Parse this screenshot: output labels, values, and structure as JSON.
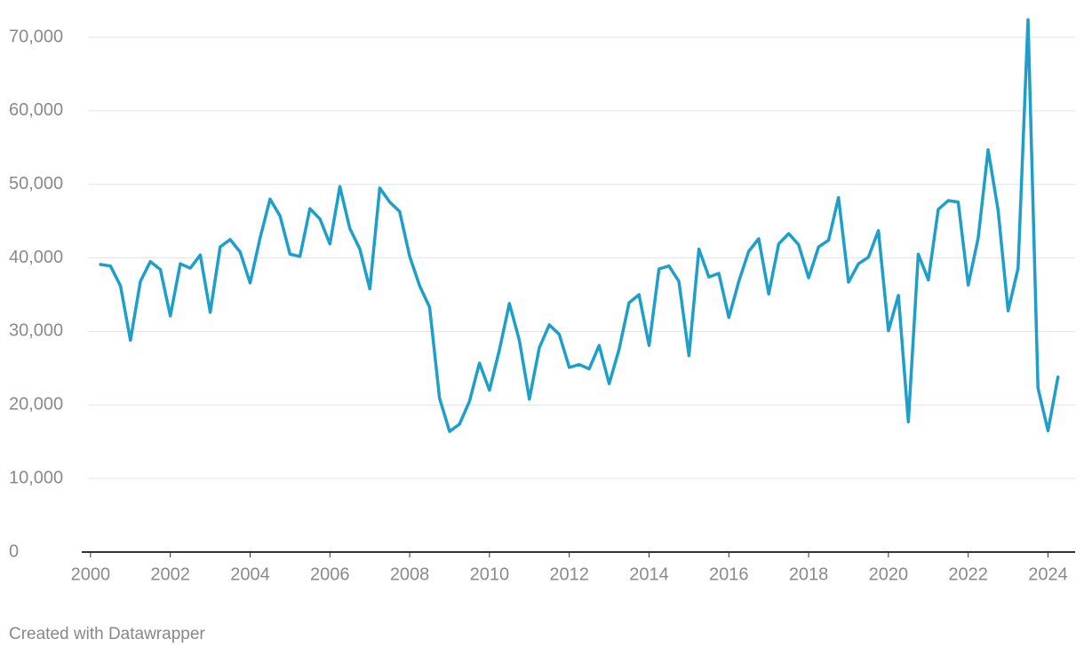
{
  "chart_data": {
    "type": "line",
    "footer": "Created with Datawrapper",
    "color": "#1d9fc9",
    "x": [
      2000.25,
      2000.5,
      2000.75,
      2001,
      2001.25,
      2001.5,
      2001.75,
      2002,
      2002.25,
      2002.5,
      2002.75,
      2003,
      2003.25,
      2003.5,
      2003.75,
      2004,
      2004.25,
      2004.5,
      2004.75,
      2005,
      2005.25,
      2005.5,
      2005.75,
      2006,
      2006.25,
      2006.5,
      2006.75,
      2007,
      2007.25,
      2007.5,
      2007.75,
      2008,
      2008.25,
      2008.5,
      2008.75,
      2009,
      2009.25,
      2009.5,
      2009.75,
      2010,
      2010.25,
      2010.5,
      2010.75,
      2011,
      2011.25,
      2011.5,
      2011.75,
      2012,
      2012.25,
      2012.5,
      2012.75,
      2013,
      2013.25,
      2013.5,
      2013.75,
      2014,
      2014.25,
      2014.5,
      2014.75,
      2015,
      2015.25,
      2015.5,
      2015.75,
      2016,
      2016.25,
      2016.5,
      2016.75,
      2017,
      2017.25,
      2017.5,
      2017.75,
      2018,
      2018.25,
      2018.5,
      2018.75,
      2019,
      2019.25,
      2019.5,
      2019.75,
      2020,
      2020.25,
      2020.5,
      2020.75,
      2021,
      2021.25,
      2021.5,
      2021.75,
      2022,
      2022.25,
      2022.5,
      2022.75,
      2023,
      2023.25,
      2023.5,
      2023.75,
      2024,
      2024.25
    ],
    "values": [
      39100,
      38900,
      36200,
      28800,
      36800,
      39500,
      38400,
      32100,
      39200,
      38600,
      40400,
      32600,
      41500,
      42500,
      40800,
      36600,
      42700,
      48000,
      45700,
      40500,
      40200,
      46700,
      45300,
      41900,
      49700,
      44000,
      41200,
      35800,
      49500,
      47600,
      46300,
      40200,
      36200,
      33300,
      20900,
      16400,
      17400,
      20500,
      25700,
      22000,
      27500,
      33800,
      28800,
      20800,
      27800,
      30900,
      29600,
      25100,
      25500,
      24900,
      28100,
      22900,
      27600,
      33900,
      35000,
      28100,
      38500,
      38900,
      36800,
      26700,
      41200,
      37400,
      37900,
      31900,
      36800,
      40900,
      42600,
      35100,
      41900,
      43300,
      41800,
      37300,
      41500,
      42400,
      48200,
      36700,
      39200,
      40100,
      43700,
      30100,
      34900,
      17700,
      40500,
      37000,
      46600,
      47800,
      47600,
      36300,
      42700,
      54700,
      46500,
      32800,
      38600,
      72400,
      22300,
      16500,
      23800
    ],
    "xlim": [
      1999.78,
      2024.68
    ],
    "xticks": [
      2000,
      2002,
      2004,
      2006,
      2008,
      2010,
      2012,
      2014,
      2016,
      2018,
      2020,
      2022,
      2024
    ],
    "ylim": [
      0,
      72500
    ],
    "yticks": [
      0,
      {
        "value": 10000,
        "label": "10,000"
      },
      {
        "value": 20000,
        "label": "20,000"
      },
      {
        "value": 30000,
        "label": "30,000"
      },
      {
        "value": 40000,
        "label": "40,000"
      },
      {
        "value": 50000,
        "label": "50,000"
      },
      {
        "value": 60000,
        "label": "60,000"
      },
      {
        "value": 70000,
        "label": "70,000"
      }
    ],
    "grid": true
  }
}
